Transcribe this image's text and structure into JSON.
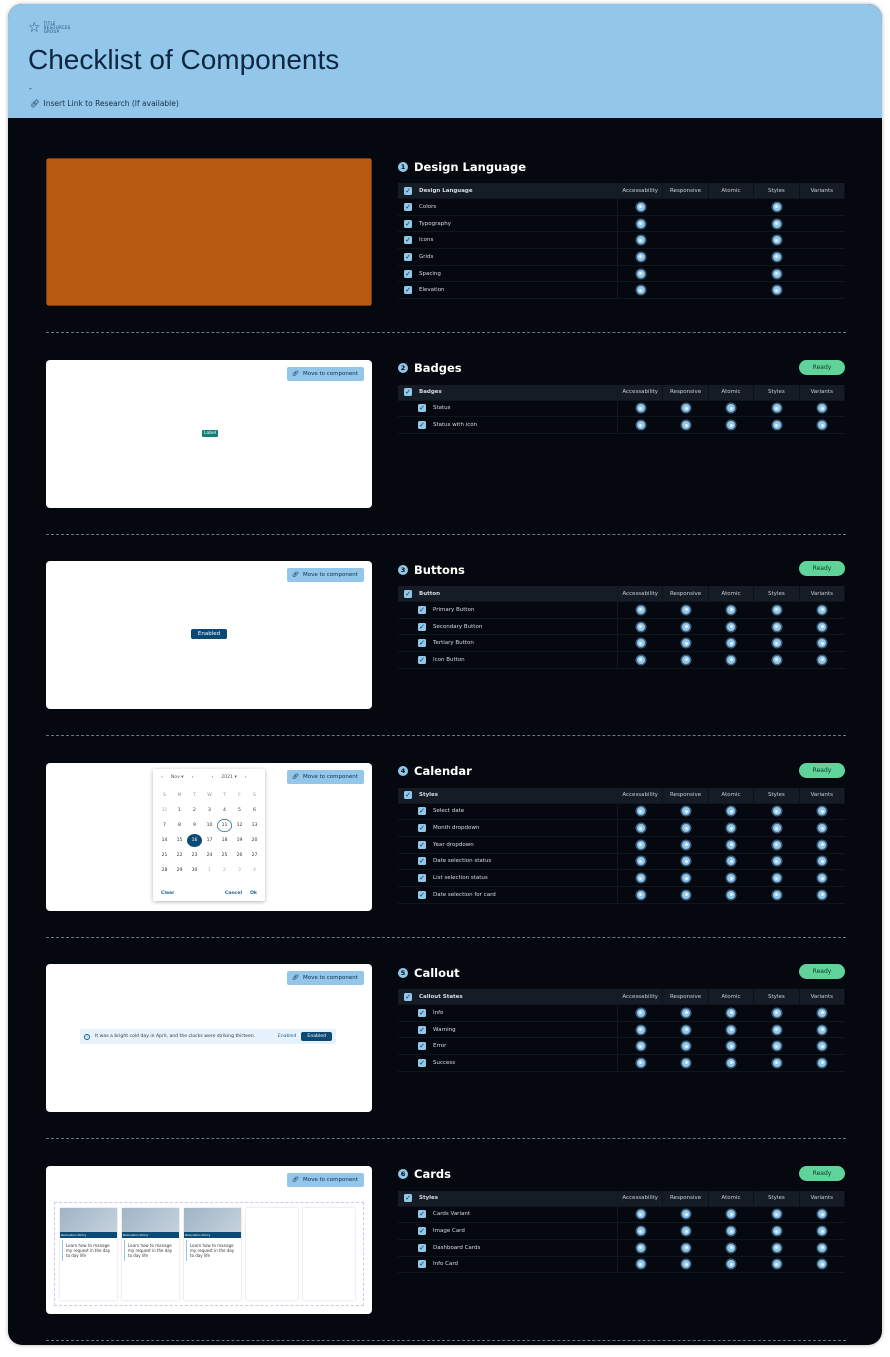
{
  "header": {
    "logo_text": "TITLE RESOURCES GROUP",
    "title": "Checklist of Components",
    "subtitle": "-",
    "research_link": "Insert Link to Research (If available)"
  },
  "columns": [
    "Accessability",
    "Responsive",
    "Atomic",
    "Styles",
    "Variants"
  ],
  "move_label": "Move to component",
  "colors": {
    "header": "#92c7ea",
    "background": "#05090f",
    "ready": "#5fd39a",
    "design_language_preview": "#b85a12"
  },
  "sections": [
    {
      "number": "1",
      "title": "Design Language",
      "status": "",
      "group": "Design Language",
      "sub": false,
      "rows": [
        {
          "label": "Colors",
          "checks": [
            1,
            0,
            0,
            1,
            0
          ]
        },
        {
          "label": "Typography",
          "checks": [
            1,
            0,
            0,
            1,
            0
          ]
        },
        {
          "label": "Icons",
          "checks": [
            1,
            0,
            0,
            1,
            0
          ]
        },
        {
          "label": "Grids",
          "checks": [
            1,
            0,
            0,
            1,
            0
          ]
        },
        {
          "label": "Spacing",
          "checks": [
            1,
            0,
            0,
            1,
            0
          ]
        },
        {
          "label": "Elevation",
          "checks": [
            1,
            0,
            0,
            1,
            0
          ]
        }
      ]
    },
    {
      "number": "2",
      "title": "Badges",
      "status": "Ready",
      "group": "Badges",
      "sub": true,
      "rows": [
        {
          "label": "Status",
          "checks": [
            1,
            1,
            1,
            1,
            1
          ]
        },
        {
          "label": "Status with icon",
          "checks": [
            1,
            1,
            1,
            1,
            1
          ]
        }
      ]
    },
    {
      "number": "3",
      "title": "Buttons",
      "status": "Ready",
      "group": "Button",
      "sub": true,
      "rows": [
        {
          "label": "Primary Button",
          "checks": [
            1,
            1,
            1,
            1,
            1
          ]
        },
        {
          "label": "Secondary Button",
          "checks": [
            1,
            1,
            1,
            1,
            1
          ]
        },
        {
          "label": "Tertiary Button",
          "checks": [
            1,
            1,
            1,
            1,
            1
          ]
        },
        {
          "label": "Icon Button",
          "checks": [
            1,
            1,
            1,
            1,
            1
          ]
        }
      ]
    },
    {
      "number": "4",
      "title": "Calendar",
      "status": "Ready",
      "group": "Styles",
      "sub": true,
      "rows": [
        {
          "label": "Select date",
          "checks": [
            1,
            1,
            1,
            1,
            1
          ]
        },
        {
          "label": "Month dropdown",
          "checks": [
            1,
            1,
            1,
            1,
            1
          ]
        },
        {
          "label": "Year dropdown",
          "checks": [
            1,
            1,
            1,
            1,
            1
          ]
        },
        {
          "label": "Date selection status",
          "checks": [
            1,
            1,
            1,
            1,
            1
          ]
        },
        {
          "label": "List selection status",
          "checks": [
            1,
            1,
            1,
            1,
            1
          ]
        },
        {
          "label": "Date selection for card",
          "checks": [
            1,
            1,
            1,
            1,
            1
          ]
        }
      ]
    },
    {
      "number": "5",
      "title": "Callout",
      "status": "Ready",
      "group": "Callout States",
      "sub": true,
      "rows": [
        {
          "label": "Info",
          "checks": [
            1,
            1,
            1,
            1,
            1
          ]
        },
        {
          "label": "Warning",
          "checks": [
            1,
            1,
            1,
            1,
            1
          ]
        },
        {
          "label": "Error",
          "checks": [
            1,
            1,
            1,
            1,
            1
          ]
        },
        {
          "label": "Success",
          "checks": [
            1,
            1,
            1,
            1,
            1
          ]
        }
      ]
    },
    {
      "number": "6",
      "title": "Cards",
      "status": "Ready",
      "group": "Styles",
      "sub": true,
      "rows": [
        {
          "label": "Cards Variant",
          "checks": [
            1,
            1,
            1,
            1,
            1
          ]
        },
        {
          "label": "Image Card",
          "checks": [
            1,
            1,
            1,
            1,
            1
          ]
        },
        {
          "label": "Dashboard Cards",
          "checks": [
            1,
            1,
            1,
            1,
            1
          ]
        },
        {
          "label": "Info Card",
          "checks": [
            1,
            1,
            1,
            1,
            1
          ]
        }
      ]
    }
  ],
  "previews": {
    "badge_label": "Label",
    "button_label": "Enabled",
    "calendar": {
      "month": "Nov",
      "year": "2021",
      "weekdays": [
        "S",
        "M",
        "T",
        "W",
        "T",
        "F",
        "S"
      ],
      "days": [
        "31",
        "1",
        "2",
        "3",
        "4",
        "5",
        "6",
        "7",
        "8",
        "9",
        "10",
        "11",
        "12",
        "13",
        "14",
        "15",
        "16",
        "17",
        "18",
        "19",
        "20",
        "21",
        "22",
        "23",
        "24",
        "25",
        "26",
        "27",
        "28",
        "29",
        "30",
        "1",
        "2",
        "3",
        "4"
      ],
      "today": "11",
      "selected": "16",
      "clear": "Clear",
      "cancel": "Cancel",
      "ok": "Ok"
    },
    "callout": {
      "message": "It was a bright cold day in April, and the clocks were striking thirteen.",
      "link": "Enabled",
      "button": "Enabled"
    },
    "cards": {
      "card_text": "Learn how to manage my request in the day to day life",
      "tag": "Relocation Policy"
    }
  }
}
